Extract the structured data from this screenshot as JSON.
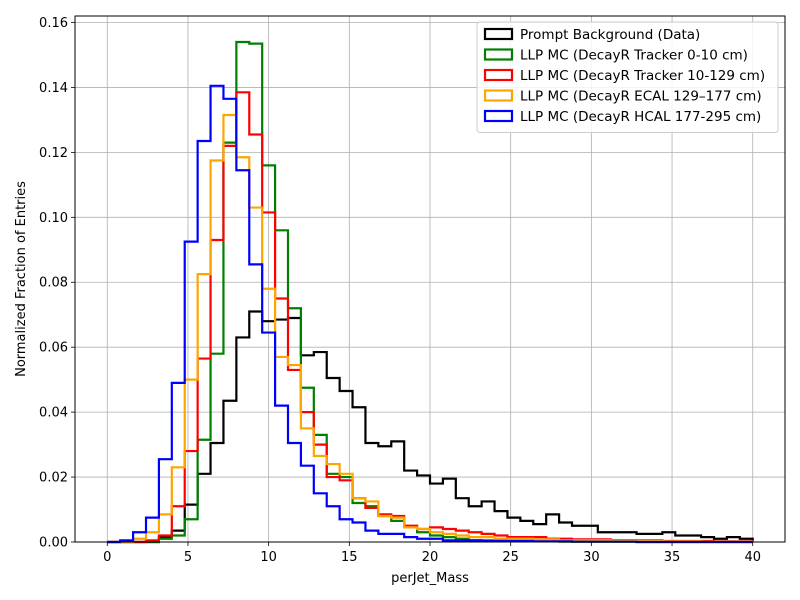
{
  "chart_data": {
    "type": "histogram",
    "title": "",
    "xlabel": "perJet_Mass",
    "ylabel": "Normalized Fraction of Entries",
    "xlim": [
      -2,
      42
    ],
    "ylim": [
      0,
      0.162
    ],
    "xticks": [
      0,
      5,
      10,
      15,
      20,
      25,
      30,
      35,
      40
    ],
    "yticks": [
      0.0,
      0.02,
      0.04,
      0.06,
      0.08,
      0.1,
      0.12,
      0.14,
      0.16
    ],
    "ytick_labels": [
      "0.00",
      "0.02",
      "0.04",
      "0.06",
      "0.08",
      "0.10",
      "0.12",
      "0.14",
      "0.16"
    ],
    "grid": true,
    "legend_position": "top-right",
    "bin_edges": [
      0,
      0.8,
      1.6,
      2.4,
      3.2,
      4.0,
      4.8,
      5.6,
      6.4,
      7.2,
      8.0,
      8.8,
      9.6,
      10.4,
      11.2,
      12.0,
      12.8,
      13.6,
      14.4,
      15.2,
      16.0,
      16.8,
      17.6,
      18.4,
      19.2,
      20.0,
      20.8,
      21.6,
      22.4,
      23.2,
      24.0,
      24.8,
      25.6,
      26.4,
      27.2,
      28.0,
      28.8,
      29.6,
      30.4,
      31.2,
      32.0,
      32.8,
      33.6,
      34.4,
      35.2,
      36.0,
      36.8,
      37.6,
      38.4,
      39.2,
      40.0
    ],
    "series": [
      {
        "name": "Prompt Background (Data)",
        "color": "#000000",
        "values": [
          0.0,
          0.0,
          0.0,
          0.0,
          0.0015,
          0.0035,
          0.0115,
          0.021,
          0.0305,
          0.0435,
          0.063,
          0.071,
          0.068,
          0.0685,
          0.069,
          0.0575,
          0.0585,
          0.0505,
          0.0465,
          0.0415,
          0.0305,
          0.0295,
          0.031,
          0.022,
          0.0205,
          0.018,
          0.0195,
          0.0135,
          0.011,
          0.0125,
          0.0095,
          0.0075,
          0.0065,
          0.0055,
          0.0085,
          0.006,
          0.005,
          0.005,
          0.003,
          0.003,
          0.003,
          0.0025,
          0.0025,
          0.003,
          0.002,
          0.002,
          0.0015,
          0.001,
          0.0015,
          0.001
        ]
      },
      {
        "name": "LLP MC (DecayR Tracker 0-10 cm)",
        "color": "#008000",
        "values": [
          0.0,
          0.0,
          0.0,
          0.0,
          0.001,
          0.002,
          0.007,
          0.0315,
          0.058,
          0.123,
          0.154,
          0.1535,
          0.116,
          0.096,
          0.072,
          0.0475,
          0.033,
          0.021,
          0.02,
          0.012,
          0.011,
          0.008,
          0.0065,
          0.0045,
          0.003,
          0.002,
          0.0015,
          0.001,
          0.0005,
          0.0005,
          0.0005,
          0.0003,
          0.0003,
          0.0002,
          0.0002,
          0.0001,
          0.0001,
          0.0001,
          0.0001,
          0.0001,
          0.0001,
          0.0,
          0.0,
          0.0,
          0.0,
          0.0,
          0.0,
          0.0,
          0.0,
          0.0
        ]
      },
      {
        "name": "LLP MC (DecayR Tracker 10-129 cm)",
        "color": "#ff0000",
        "values": [
          0.0,
          0.0,
          0.0,
          0.0005,
          0.002,
          0.011,
          0.028,
          0.0565,
          0.093,
          0.122,
          0.1385,
          0.1255,
          0.1015,
          0.075,
          0.053,
          0.04,
          0.03,
          0.02,
          0.019,
          0.0135,
          0.0105,
          0.0085,
          0.008,
          0.005,
          0.004,
          0.0045,
          0.004,
          0.0035,
          0.003,
          0.0025,
          0.002,
          0.0015,
          0.0015,
          0.0015,
          0.001,
          0.001,
          0.0008,
          0.0008,
          0.0008,
          0.0005,
          0.0005,
          0.0005,
          0.0005,
          0.0003,
          0.0003,
          0.0003,
          0.0003,
          0.0002,
          0.0002,
          0.0002
        ]
      },
      {
        "name": "LLP MC (DecayR ECAL 129–177 cm)",
        "color": "#ffa500",
        "values": [
          0.0,
          0.0,
          0.001,
          0.003,
          0.0085,
          0.023,
          0.05,
          0.0825,
          0.1175,
          0.1315,
          0.1185,
          0.103,
          0.078,
          0.057,
          0.0545,
          0.035,
          0.0265,
          0.024,
          0.021,
          0.0135,
          0.0125,
          0.008,
          0.0075,
          0.0045,
          0.004,
          0.003,
          0.0025,
          0.002,
          0.0015,
          0.0015,
          0.001,
          0.001,
          0.001,
          0.0008,
          0.0008,
          0.0005,
          0.0005,
          0.0005,
          0.0005,
          0.0003,
          0.0003,
          0.0003,
          0.0003,
          0.0002,
          0.0002,
          0.0002,
          0.0001,
          0.0001,
          0.0001,
          0.0001
        ]
      },
      {
        "name": "LLP MC (DecayR HCAL 177-295 cm)",
        "color": "#0000ff",
        "values": [
          0.0,
          0.0005,
          0.003,
          0.0075,
          0.0255,
          0.049,
          0.0925,
          0.1235,
          0.1405,
          0.1365,
          0.1145,
          0.0855,
          0.0645,
          0.042,
          0.0305,
          0.0235,
          0.015,
          0.011,
          0.007,
          0.006,
          0.0035,
          0.0025,
          0.0025,
          0.0015,
          0.001,
          0.001,
          0.0005,
          0.0005,
          0.0005,
          0.0003,
          0.0003,
          0.0003,
          0.0003,
          0.0002,
          0.0002,
          0.0002,
          0.0001,
          0.0001,
          0.0001,
          0.0001,
          0.0001,
          0.0,
          0.0,
          0.0,
          0.0,
          0.0,
          0.0,
          0.0,
          0.0,
          0.0
        ]
      }
    ]
  }
}
